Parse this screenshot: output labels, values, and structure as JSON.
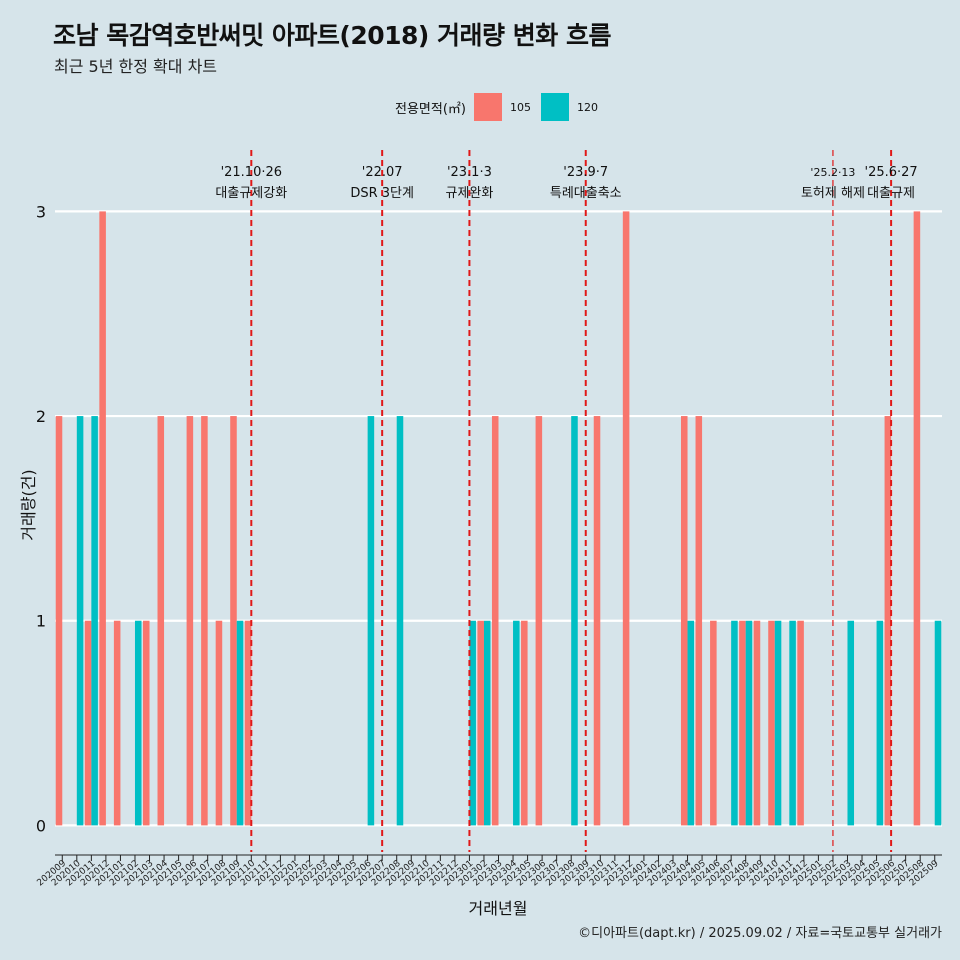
{
  "title": "조남 목감역호반써밋 아파트(2018) 거래량 변화 흐름",
  "subtitle": "최근 5년 한정 확대 차트",
  "caption": "©디아파트(dapt.kr) / 2025.09.02 / 자료=국토교통부 실거래가",
  "legend": {
    "title": "전용면적(㎡)",
    "items": [
      {
        "label": "105",
        "color": "#f8766d"
      },
      {
        "label": "120",
        "color": "#00bfc4"
      }
    ]
  },
  "chart_data": {
    "type": "bar",
    "xlabel": "거래년월",
    "ylabel": "거래량(건)",
    "ylim": [
      -0.13,
      3.3
    ],
    "yticks": [
      0,
      1,
      2,
      3
    ],
    "categories": [
      "202009",
      "202010",
      "202011",
      "202012",
      "202101",
      "202102",
      "202103",
      "202104",
      "202105",
      "202106",
      "202107",
      "202108",
      "202109",
      "202110",
      "202111",
      "202112",
      "202201",
      "202202",
      "202203",
      "202204",
      "202205",
      "202206",
      "202207",
      "202208",
      "202209",
      "202210",
      "202211",
      "202212",
      "202301",
      "202302",
      "202303",
      "202304",
      "202305",
      "202306",
      "202307",
      "202308",
      "202309",
      "202310",
      "202311",
      "202312",
      "202401",
      "202402",
      "202403",
      "202404",
      "202405",
      "202406",
      "202407",
      "202408",
      "202409",
      "202410",
      "202411",
      "202412",
      "202501",
      "202502",
      "202503",
      "202504",
      "202505",
      "202506",
      "202507",
      "202508",
      "202509"
    ],
    "series": [
      {
        "name": "105",
        "color": "#f8766d",
        "values": [
          2,
          0,
          1,
          3,
          1,
          0,
          1,
          2,
          0,
          2,
          2,
          1,
          2,
          1,
          0,
          0,
          0,
          0,
          0,
          0,
          0,
          0,
          0,
          0,
          0,
          0,
          0,
          0,
          0,
          1,
          2,
          0,
          1,
          2,
          0,
          0,
          0,
          2,
          0,
          3,
          0,
          0,
          0,
          2,
          2,
          1,
          0,
          1,
          1,
          1,
          0,
          1,
          0,
          0,
          0,
          0,
          0,
          2,
          0,
          3,
          0
        ]
      },
      {
        "name": "120",
        "color": "#00bfc4",
        "values": [
          0,
          2,
          2,
          0,
          0,
          1,
          0,
          0,
          0,
          0,
          0,
          0,
          1,
          0,
          0,
          0,
          0,
          0,
          0,
          0,
          0,
          2,
          0,
          2,
          0,
          0,
          0,
          0,
          1,
          1,
          0,
          1,
          0,
          0,
          0,
          2,
          0,
          0,
          0,
          0,
          0,
          0,
          0,
          1,
          0,
          0,
          1,
          1,
          0,
          1,
          1,
          0,
          0,
          0,
          1,
          0,
          1,
          0,
          0,
          0,
          1
        ]
      }
    ],
    "annotations": [
      {
        "index": 13.5,
        "date": "'21.10·26",
        "label": "대출규제강화",
        "style": "thick"
      },
      {
        "index": 22.5,
        "date": "'22.07",
        "label": "DSR 3단계",
        "style": "thick"
      },
      {
        "index": 28.5,
        "date": "'23.1·3",
        "label": "규제완화",
        "style": "thick"
      },
      {
        "index": 36.5,
        "date": "'23.9·7",
        "label": "특례대출축소",
        "style": "thick"
      },
      {
        "index": 53.5,
        "date": "'25.2·13",
        "label": "토허제 해제",
        "style": "thin"
      },
      {
        "index": 57.5,
        "date": "'25.6·27",
        "label": "대출규제",
        "style": "thick"
      }
    ]
  }
}
